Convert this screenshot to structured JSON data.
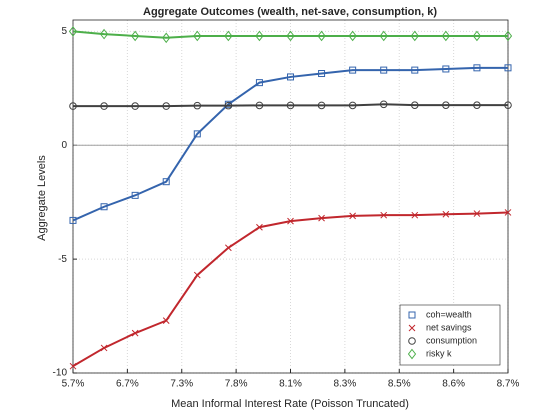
{
  "chart_data": {
    "type": "line",
    "title": "Aggregate Outcomes (wealth, net-save, consumption, k)",
    "xlabel": "Mean Informal Interest Rate (Poisson Truncated)",
    "ylabel": "Aggregate Levels",
    "x": [
      1,
      2,
      3,
      4,
      5,
      6,
      7,
      8,
      9,
      10,
      11,
      12,
      13,
      14,
      15
    ],
    "xlim": [
      1,
      15
    ],
    "xticks": [
      {
        "value": 1,
        "label": "5.7%"
      },
      {
        "value": 2.75,
        "label": "6.7%"
      },
      {
        "value": 4.5,
        "label": "7.3%"
      },
      {
        "value": 6.25,
        "label": "7.8%"
      },
      {
        "value": 8,
        "label": "8.1%"
      },
      {
        "value": 9.75,
        "label": "8.3%"
      },
      {
        "value": 11.5,
        "label": "8.5%"
      },
      {
        "value": 13.25,
        "label": "8.6%"
      },
      {
        "value": 15,
        "label": "8.7%"
      }
    ],
    "ylim": [
      -10,
      5.5
    ],
    "yticks": [
      -10,
      -5,
      0,
      5
    ],
    "grid": true,
    "legend": "lower right",
    "series": [
      {
        "name": "coh=wealth",
        "color": "#3464ad",
        "marker": "square",
        "values": [
          -3.3,
          -2.7,
          -2.2,
          -1.6,
          0.5,
          1.8,
          2.75,
          3.0,
          3.15,
          3.3,
          3.3,
          3.3,
          3.35,
          3.4,
          3.4
        ]
      },
      {
        "name": "net savings",
        "color": "#c1272d",
        "marker": "x",
        "values": [
          -9.7,
          -8.9,
          -8.25,
          -7.7,
          -5.7,
          -4.5,
          -3.6,
          -3.33,
          -3.2,
          -3.1,
          -3.07,
          -3.07,
          -3.03,
          -3.0,
          -2.95
        ]
      },
      {
        "name": "consumption",
        "color": "#404040",
        "marker": "circle",
        "values": [
          1.72,
          1.72,
          1.72,
          1.72,
          1.74,
          1.74,
          1.75,
          1.75,
          1.75,
          1.75,
          1.8,
          1.76,
          1.76,
          1.76,
          1.76
        ]
      },
      {
        "name": "risky k",
        "color": "#4daf4a",
        "marker": "diamond",
        "values": [
          5.0,
          4.88,
          4.8,
          4.72,
          4.8,
          4.8,
          4.8,
          4.8,
          4.8,
          4.8,
          4.8,
          4.8,
          4.8,
          4.8,
          4.8
        ]
      }
    ]
  }
}
